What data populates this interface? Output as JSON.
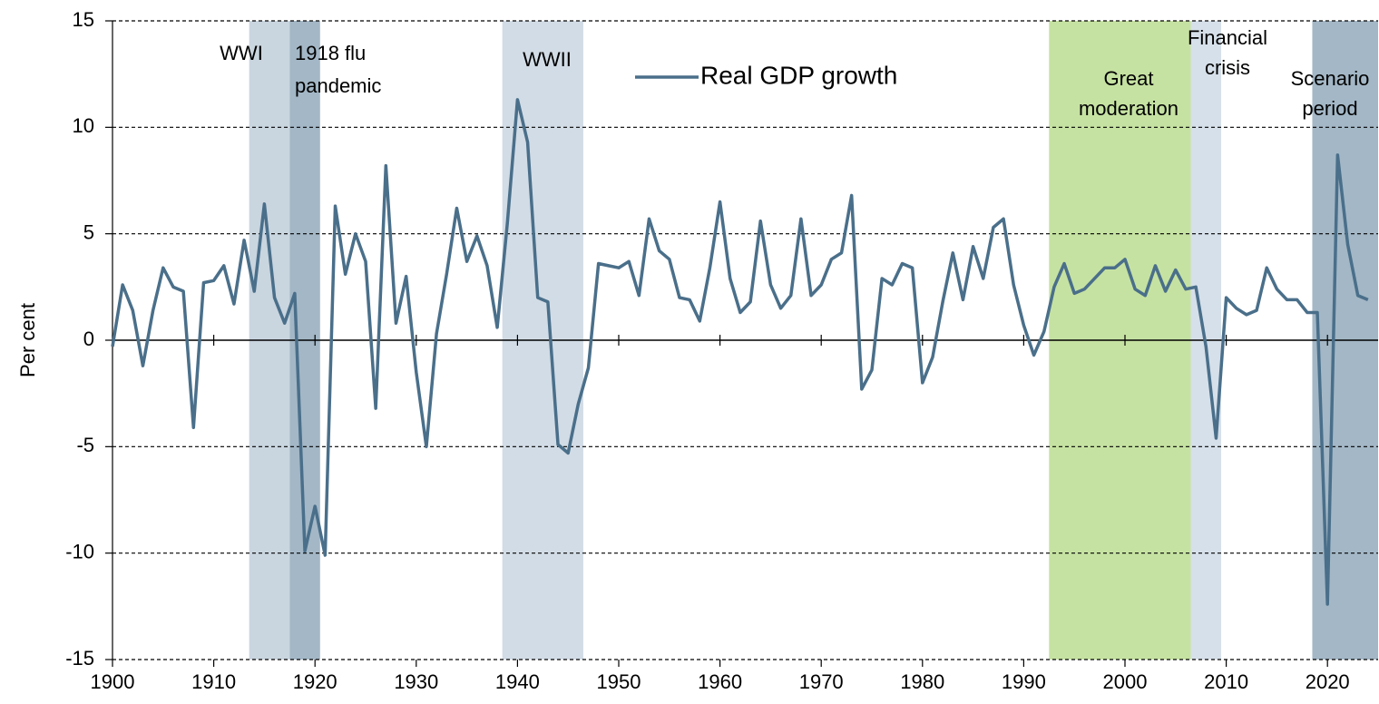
{
  "chart_data": {
    "type": "line",
    "y_label": "Per cent",
    "xlim": [
      1900,
      2025
    ],
    "ylim": [
      -15,
      15
    ],
    "xticks": [
      1900,
      1910,
      1920,
      1930,
      1940,
      1950,
      1960,
      1970,
      1980,
      1990,
      2000,
      2010,
      2020
    ],
    "yticks": [
      -15,
      -10,
      -5,
      0,
      5,
      10,
      15
    ],
    "grid": true,
    "bands": [
      {
        "label": [
          "WWI"
        ],
        "x": [
          1913.5,
          1917.5
        ],
        "color": "#c9d5df"
      },
      {
        "label": [
          "1918 flu",
          "pandemic"
        ],
        "x": [
          1917.5,
          1920.5
        ],
        "color": "#a3b7c6"
      },
      {
        "label": [
          "WWII"
        ],
        "x": [
          1938.5,
          1946.5
        ],
        "color": "#d2dce6"
      },
      {
        "label": [
          "Great",
          "moderation"
        ],
        "x": [
          1992.5,
          2006.5
        ],
        "color": "#c6e2a2"
      },
      {
        "label": [
          "Financial",
          "crisis"
        ],
        "x": [
          2006.5,
          2009.5
        ],
        "color": "#d6e0ea"
      },
      {
        "label": [
          "Scenario",
          "period"
        ],
        "x": [
          2018.5,
          2025
        ],
        "color": "#a3b7c6"
      }
    ],
    "x": [
      1900,
      1901,
      1902,
      1903,
      1904,
      1905,
      1906,
      1907,
      1908,
      1909,
      1910,
      1911,
      1912,
      1913,
      1914,
      1915,
      1916,
      1917,
      1918,
      1919,
      1920,
      1921,
      1922,
      1923,
      1924,
      1925,
      1926,
      1927,
      1928,
      1929,
      1930,
      1931,
      1932,
      1933,
      1934,
      1935,
      1936,
      1937,
      1938,
      1939,
      1940,
      1941,
      1942,
      1943,
      1944,
      1945,
      1946,
      1947,
      1948,
      1949,
      1950,
      1951,
      1952,
      1953,
      1954,
      1955,
      1956,
      1957,
      1958,
      1959,
      1960,
      1961,
      1962,
      1963,
      1964,
      1965,
      1966,
      1967,
      1968,
      1969,
      1970,
      1971,
      1972,
      1973,
      1974,
      1975,
      1976,
      1977,
      1978,
      1979,
      1980,
      1981,
      1982,
      1983,
      1984,
      1985,
      1986,
      1987,
      1988,
      1989,
      1990,
      1991,
      1992,
      1993,
      1994,
      1995,
      1996,
      1997,
      1998,
      1999,
      2000,
      2001,
      2002,
      2003,
      2004,
      2005,
      2006,
      2007,
      2008,
      2009,
      2010,
      2011,
      2012,
      2013,
      2014,
      2015,
      2016,
      2017,
      2018,
      2019,
      2020,
      2021,
      2022,
      2023,
      2024
    ],
    "series": [
      {
        "name": "Real GDP growth",
        "color": "#4a6f8a",
        "values": [
          -0.3,
          2.6,
          1.4,
          -1.2,
          1.4,
          3.4,
          2.5,
          2.3,
          -4.1,
          2.7,
          2.8,
          3.5,
          1.7,
          4.7,
          2.3,
          6.4,
          2.0,
          0.8,
          2.2,
          -9.9,
          -7.8,
          -10.1,
          6.3,
          3.1,
          5.0,
          3.7,
          -3.2,
          8.2,
          0.8,
          3.0,
          -1.5,
          -5.0,
          0.3,
          3.1,
          6.2,
          3.7,
          4.9,
          3.5,
          0.6,
          5.5,
          11.3,
          9.3,
          2.0,
          1.8,
          -4.9,
          -5.3,
          -3.0,
          -1.3,
          3.6,
          3.5,
          3.4,
          3.7,
          2.1,
          5.7,
          4.2,
          3.8,
          2.0,
          1.9,
          0.9,
          3.4,
          6.5,
          2.9,
          1.3,
          1.8,
          5.6,
          2.6,
          1.5,
          2.1,
          5.7,
          2.1,
          2.6,
          3.8,
          4.1,
          6.8,
          -2.3,
          -1.4,
          2.9,
          2.6,
          3.6,
          3.4,
          -2.0,
          -0.8,
          1.8,
          4.1,
          1.9,
          4.4,
          2.9,
          5.3,
          5.7,
          2.6,
          0.7,
          -0.7,
          0.4,
          2.5,
          3.6,
          2.2,
          2.4,
          2.9,
          3.4,
          3.4,
          3.8,
          2.4,
          2.1,
          3.5,
          2.3,
          3.3,
          2.4,
          2.5,
          -0.3,
          -4.6,
          2.0,
          1.5,
          1.2,
          1.4,
          3.4,
          2.4,
          1.9,
          1.9,
          1.3,
          1.3,
          -12.4,
          8.7,
          4.5,
          2.1,
          1.9
        ]
      }
    ]
  }
}
